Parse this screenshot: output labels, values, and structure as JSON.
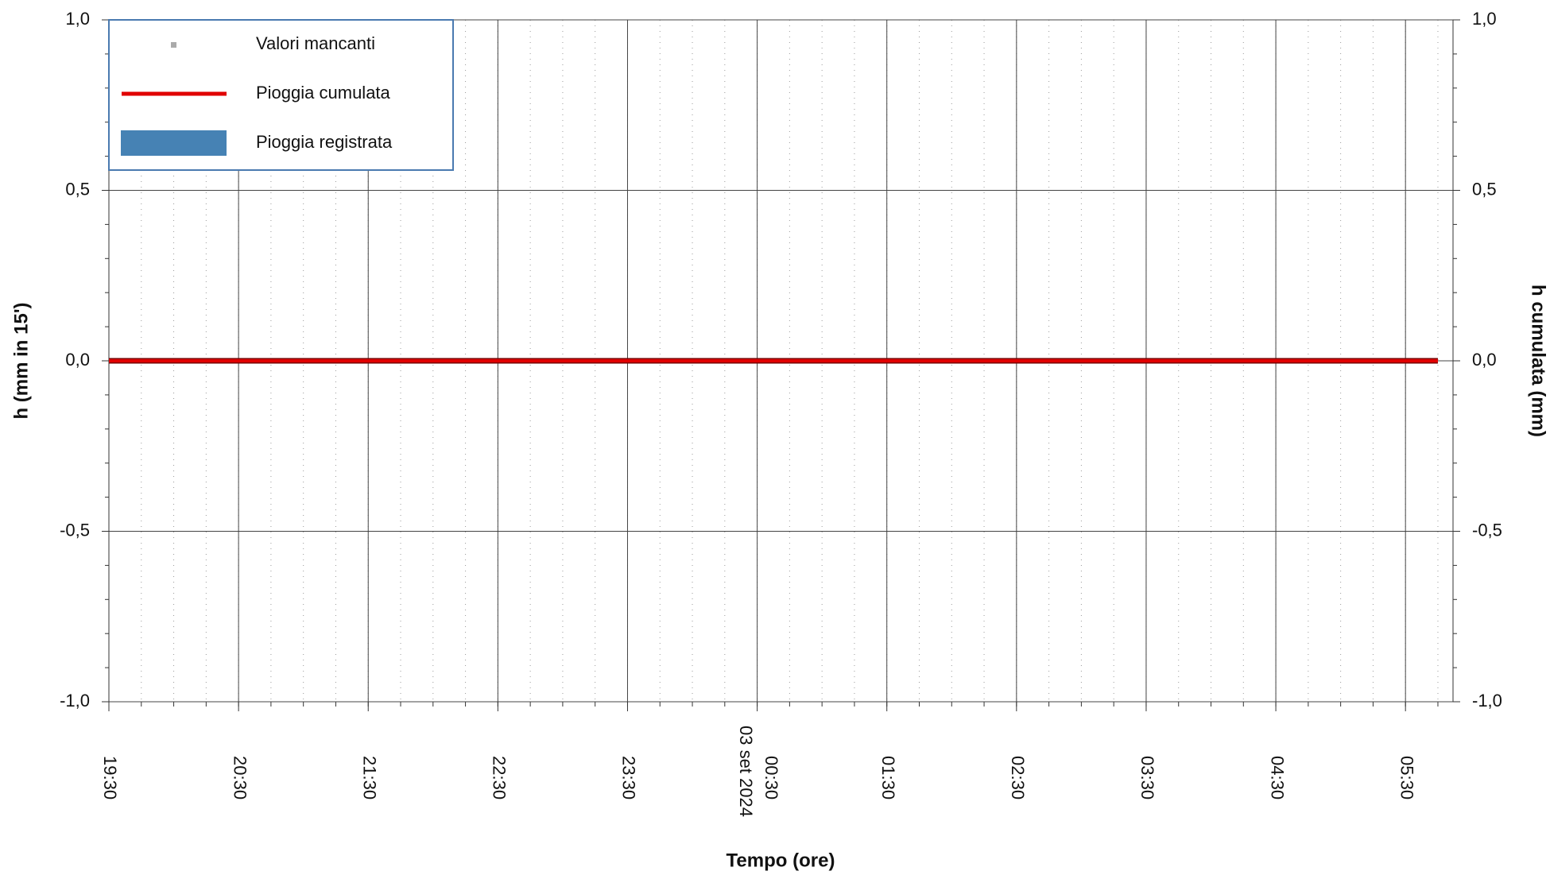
{
  "chart_data": {
    "type": "line",
    "xlabel": "Tempo (ore)",
    "ylabel": "h (mm in 15')",
    "y2label": "h cumulata (mm)",
    "xlim": [
      "19:30",
      "05:52"
    ],
    "xticks": [
      "19:30",
      "20:30",
      "21:30",
      "22:30",
      "23:30",
      {
        "value": "00:30",
        "label": "00:30",
        "date": "03 set 2024"
      },
      "01:30",
      "02:30",
      "03:30",
      "04:30",
      "05:30"
    ],
    "ylim": [
      -1.0,
      1.0
    ],
    "yticks": [
      {
        "value": -1.0,
        "label": "-1,0"
      },
      {
        "value": -0.5,
        "label": "-0,5"
      },
      {
        "value": 0,
        "label": "0,0"
      },
      {
        "value": 0.5,
        "label": "0,5"
      },
      {
        "value": 1.0,
        "label": "1,0"
      }
    ],
    "y2lim": [
      -1.0,
      1.0
    ],
    "y2ticks": [
      {
        "value": -1.0,
        "label": "-1,0"
      },
      {
        "value": -0.5,
        "label": "-0,5"
      },
      {
        "value": 0,
        "label": "0,0"
      },
      {
        "value": 0.5,
        "label": "0,5"
      },
      {
        "value": 1.0,
        "label": "1,0"
      }
    ],
    "grid": true,
    "legend": "upper left",
    "x": [
      "19:30",
      "19:45",
      "20:00",
      "20:15",
      "20:30",
      "20:45",
      "21:00",
      "21:15",
      "21:30",
      "21:45",
      "22:00",
      "22:15",
      "22:30",
      "22:45",
      "23:00",
      "23:15",
      "23:30",
      "23:45",
      "00:00",
      "00:15",
      "00:30",
      "00:45",
      "01:00",
      "01:15",
      "01:30",
      "01:45",
      "02:00",
      "02:15",
      "02:30",
      "02:45",
      "03:00",
      "03:15",
      "03:30",
      "03:45",
      "04:00",
      "04:15",
      "04:30",
      "04:45",
      "05:00",
      "05:15",
      "05:30",
      "05:45"
    ],
    "series": [
      {
        "name": "Valori mancanti",
        "color": "#aaaaaa",
        "kind": "point",
        "values": [
          null,
          null,
          null,
          null,
          null,
          null,
          null,
          null,
          null,
          null,
          null,
          null,
          null,
          null,
          null,
          null,
          null,
          null,
          null,
          null,
          null,
          null,
          null,
          null,
          null,
          null,
          null,
          null,
          null,
          null,
          null,
          null,
          null,
          null,
          null,
          null,
          null,
          null,
          null,
          null,
          null,
          null
        ]
      },
      {
        "name": "Pioggia cumulata",
        "color": "#e00000",
        "kind": "line",
        "axis": "y2",
        "values": [
          0,
          0,
          0,
          0,
          0,
          0,
          0,
          0,
          0,
          0,
          0,
          0,
          0,
          0,
          0,
          0,
          0,
          0,
          0,
          0,
          0,
          0,
          0,
          0,
          0,
          0,
          0,
          0,
          0,
          0,
          0,
          0,
          0,
          0,
          0,
          0,
          0,
          0,
          0,
          0,
          0,
          0
        ]
      },
      {
        "name": "Pioggia registrata",
        "color": "#4682b4",
        "kind": "bar",
        "values": [
          0,
          0,
          0,
          0,
          0,
          0,
          0,
          0,
          0,
          0,
          0,
          0,
          0,
          0,
          0,
          0,
          0,
          0,
          0,
          0,
          0,
          0,
          0,
          0,
          0,
          0,
          0,
          0,
          0,
          0,
          0,
          0,
          0,
          0,
          0,
          0,
          0,
          0,
          0,
          0,
          0,
          0
        ]
      }
    ]
  }
}
